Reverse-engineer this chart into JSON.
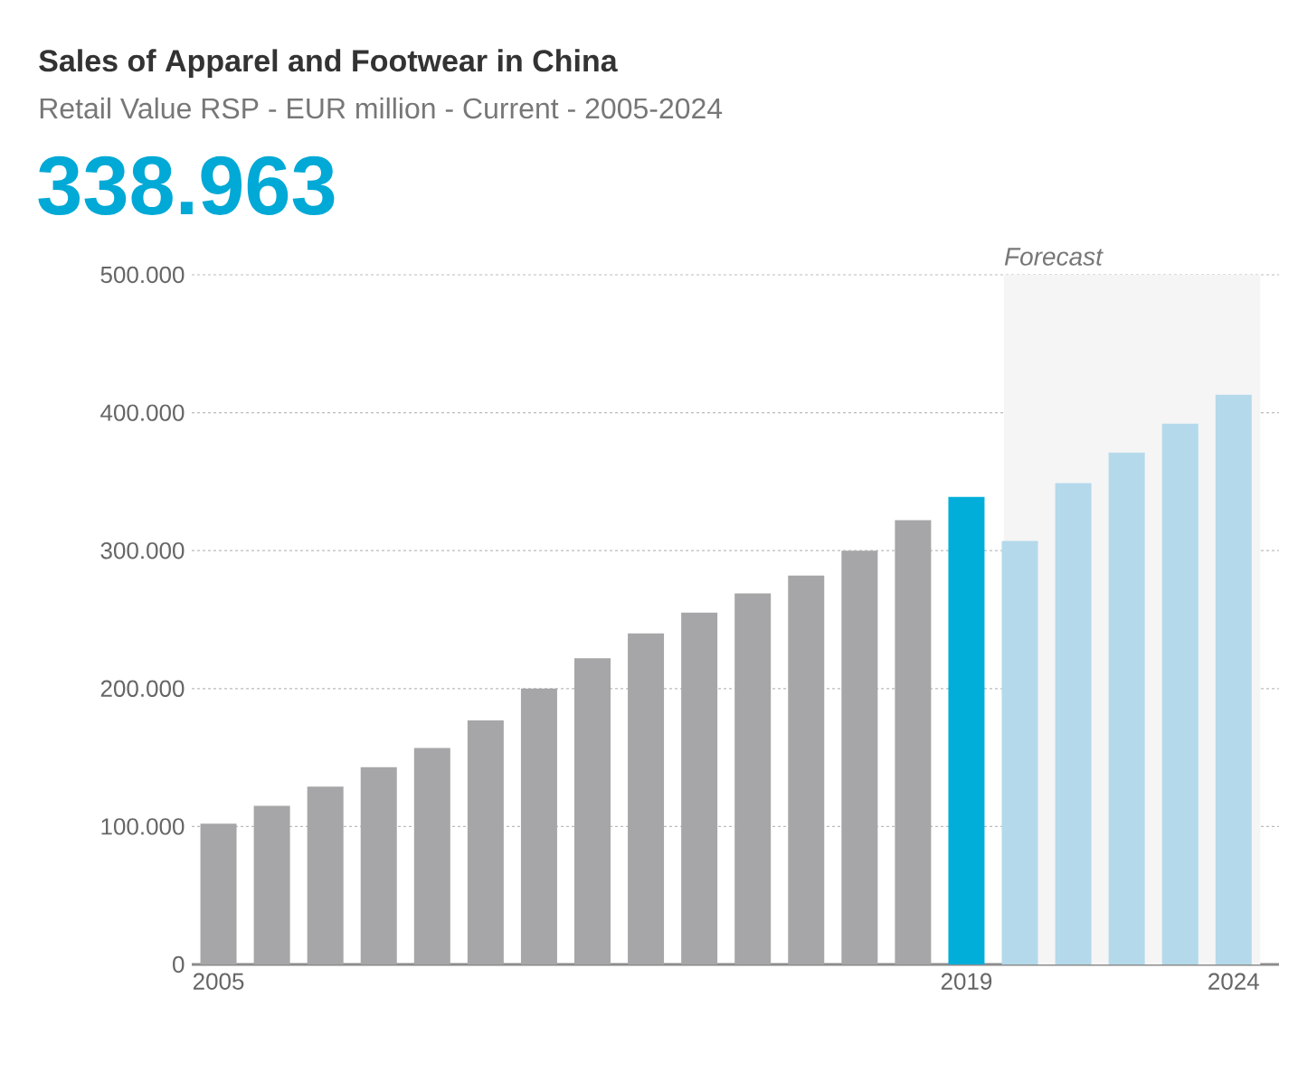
{
  "chart_data": {
    "type": "bar",
    "title": "Sales of Apparel and Footwear in China",
    "subtitle": "Retail Value RSP - EUR million - Current - 2005-2024",
    "annotations": [
      "338.963"
    ],
    "x": [
      2005,
      2006,
      2007,
      2008,
      2009,
      2010,
      2011,
      2012,
      2013,
      2014,
      2015,
      2016,
      2017,
      2018,
      2019,
      2020,
      2021,
      2022,
      2023,
      2024
    ],
    "values": [
      102000,
      115000,
      129000,
      143000,
      157000,
      177000,
      200000,
      222000,
      240000,
      255000,
      269000,
      282000,
      300000,
      322000,
      338963,
      307000,
      349000,
      371000,
      392000,
      413000
    ],
    "colors": [
      "#a6a6a8",
      "#a6a6a8",
      "#a6a6a8",
      "#a6a6a8",
      "#a6a6a8",
      "#a6a6a8",
      "#a6a6a8",
      "#a6a6a8",
      "#a6a6a8",
      "#a6a6a8",
      "#a6a6a8",
      "#a6a6a8",
      "#a6a6a8",
      "#a6a6a8",
      "#00aed9",
      "#b3d9eb",
      "#b3d9eb",
      "#b3d9eb",
      "#b3d9eb",
      "#b3d9eb"
    ],
    "xlim": [
      2004.5,
      2024.85
    ],
    "ylim": [
      0,
      500000
    ],
    "xticks": [
      2005,
      2019,
      2024
    ],
    "yticks": [
      0,
      {
        "value": 100000,
        "label": "100.000"
      },
      {
        "value": 200000,
        "label": "200.000"
      },
      {
        "value": 300000,
        "label": "300.000"
      },
      {
        "value": 400000,
        "label": "400.000"
      },
      {
        "value": 500000,
        "label": "500.000"
      }
    ],
    "grid": "y",
    "bands": [
      {
        "axis": "x",
        "from": 2019.7,
        "to": 2024.5,
        "label": "Forecast",
        "color": "#f5f5f5"
      }
    ]
  }
}
